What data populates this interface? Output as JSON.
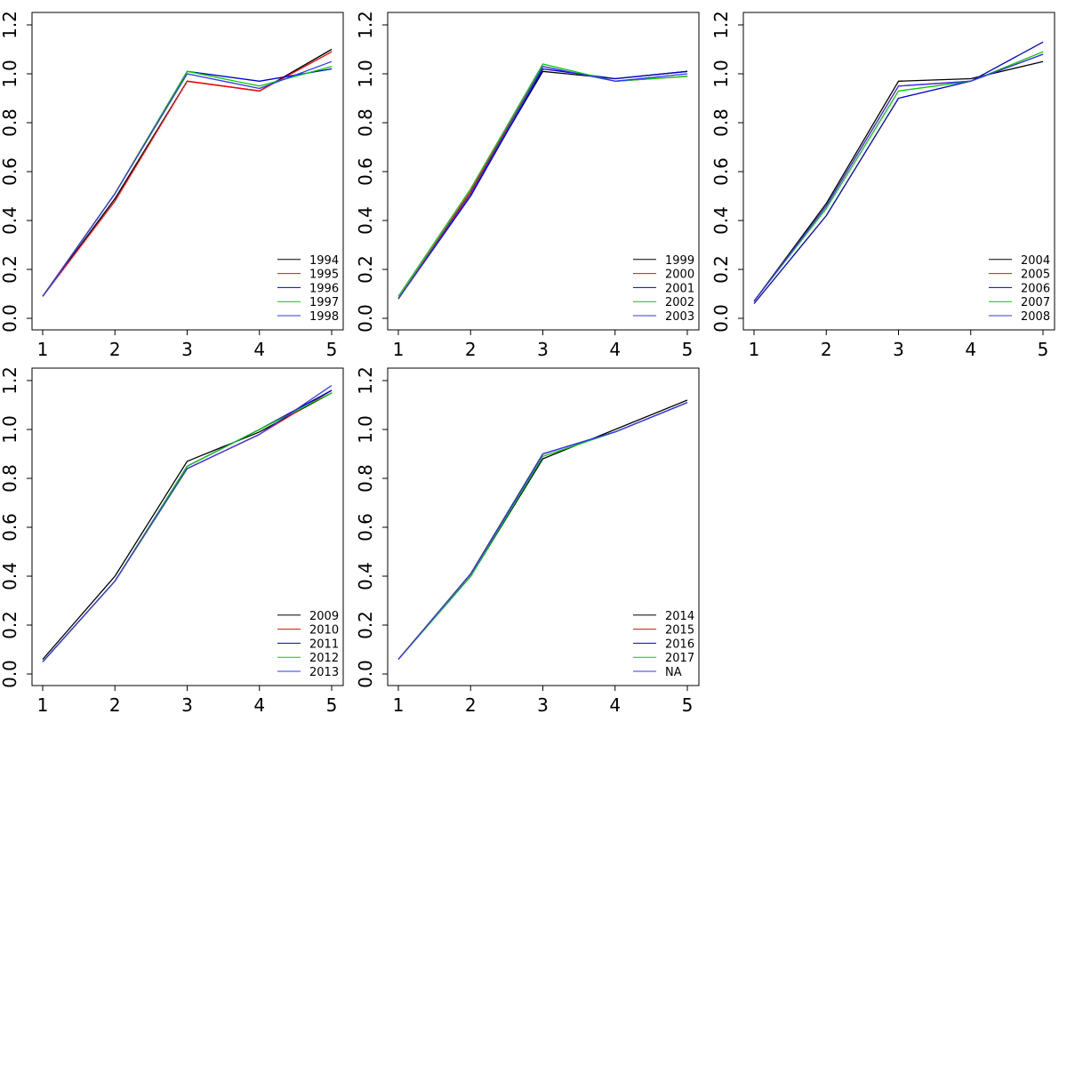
{
  "palette": [
    "#000000",
    "#ff0000",
    "#0000cd",
    "#00cd00",
    "#3333ff"
  ],
  "chart_data": [
    {
      "type": "line",
      "x": [
        1,
        2,
        3,
        4,
        5
      ],
      "xlim": [
        1,
        5
      ],
      "ylim": [
        0,
        1.2
      ],
      "x_ticks": [
        "1",
        "2",
        "3",
        "4",
        "5"
      ],
      "y_ticks": [
        "0.0",
        "0.2",
        "0.4",
        "0.6",
        "0.8",
        "1.0",
        "1.2"
      ],
      "legend_position": "bottom-right",
      "series": [
        {
          "name": "1994",
          "color": "#000000",
          "values": [
            0.09,
            0.49,
            0.97,
            0.93,
            1.1
          ]
        },
        {
          "name": "1995",
          "color": "#ff0000",
          "values": [
            0.09,
            0.48,
            0.97,
            0.93,
            1.09
          ]
        },
        {
          "name": "1996",
          "color": "#0000cd",
          "values": [
            0.09,
            0.51,
            1.01,
            0.97,
            1.02
          ]
        },
        {
          "name": "1997",
          "color": "#00cd00",
          "values": [
            0.09,
            0.51,
            1.01,
            0.95,
            1.03
          ]
        },
        {
          "name": "1998",
          "color": "#3333ff",
          "values": [
            0.09,
            0.51,
            1.0,
            0.94,
            1.05
          ]
        }
      ]
    },
    {
      "type": "line",
      "x": [
        1,
        2,
        3,
        4,
        5
      ],
      "xlim": [
        1,
        5
      ],
      "ylim": [
        0,
        1.2
      ],
      "x_ticks": [
        "1",
        "2",
        "3",
        "4",
        "5"
      ],
      "y_ticks": [
        "0.0",
        "0.2",
        "0.4",
        "0.6",
        "0.8",
        "1.0",
        "1.2"
      ],
      "legend_position": "bottom-right",
      "series": [
        {
          "name": "1999",
          "color": "#000000",
          "values": [
            0.08,
            0.51,
            1.01,
            0.98,
            1.01
          ]
        },
        {
          "name": "2000",
          "color": "#ff0000",
          "values": [
            0.08,
            0.52,
            1.03,
            0.97,
            0.99
          ]
        },
        {
          "name": "2001",
          "color": "#0000cd",
          "values": [
            0.08,
            0.5,
            1.02,
            0.98,
            1.01
          ]
        },
        {
          "name": "2002",
          "color": "#00cd00",
          "values": [
            0.09,
            0.53,
            1.04,
            0.97,
            0.99
          ]
        },
        {
          "name": "2003",
          "color": "#3333ff",
          "values": [
            0.08,
            0.51,
            1.03,
            0.97,
            1.0
          ]
        }
      ]
    },
    {
      "type": "line",
      "x": [
        1,
        2,
        3,
        4,
        5
      ],
      "xlim": [
        1,
        5
      ],
      "ylim": [
        0,
        1.2
      ],
      "x_ticks": [
        "1",
        "2",
        "3",
        "4",
        "5"
      ],
      "y_ticks": [
        "0.0",
        "0.2",
        "0.4",
        "0.6",
        "0.8",
        "1.0",
        "1.2"
      ],
      "legend_position": "bottom-right",
      "series": [
        {
          "name": "2004",
          "color": "#000000",
          "values": [
            0.07,
            0.47,
            0.97,
            0.98,
            1.05
          ]
        },
        {
          "name": "2005",
          "color": "#ff0000",
          "values": [
            0.07,
            0.46,
            0.95,
            0.97,
            1.08
          ]
        },
        {
          "name": "2006",
          "color": "#0000cd",
          "values": [
            0.06,
            0.42,
            0.9,
            0.97,
            1.13
          ]
        },
        {
          "name": "2007",
          "color": "#00cd00",
          "values": [
            0.07,
            0.45,
            0.93,
            0.97,
            1.09
          ]
        },
        {
          "name": "2008",
          "color": "#3333ff",
          "values": [
            0.07,
            0.46,
            0.95,
            0.97,
            1.08
          ]
        }
      ]
    },
    {
      "type": "line",
      "x": [
        1,
        2,
        3,
        4,
        5
      ],
      "xlim": [
        1,
        5
      ],
      "ylim": [
        0,
        1.2
      ],
      "x_ticks": [
        "1",
        "2",
        "3",
        "4",
        "5"
      ],
      "y_ticks": [
        "0.0",
        "0.2",
        "0.4",
        "0.6",
        "0.8",
        "1.0",
        "1.2"
      ],
      "legend_position": "bottom-right",
      "series": [
        {
          "name": "2009",
          "color": "#000000",
          "values": [
            0.06,
            0.4,
            0.87,
            0.99,
            1.15
          ]
        },
        {
          "name": "2010",
          "color": "#ff0000",
          "values": [
            0.05,
            0.38,
            0.84,
            0.98,
            1.16
          ]
        },
        {
          "name": "2011",
          "color": "#0000cd",
          "values": [
            0.05,
            0.38,
            0.85,
            1.0,
            1.16
          ]
        },
        {
          "name": "2012",
          "color": "#00cd00",
          "values": [
            0.05,
            0.38,
            0.85,
            1.0,
            1.15
          ]
        },
        {
          "name": "2013",
          "color": "#3333ff",
          "values": [
            0.05,
            0.38,
            0.84,
            0.98,
            1.18
          ]
        }
      ]
    },
    {
      "type": "line",
      "x": [
        1,
        2,
        3,
        4,
        5
      ],
      "xlim": [
        1,
        5
      ],
      "ylim": [
        0,
        1.2
      ],
      "x_ticks": [
        "1",
        "2",
        "3",
        "4",
        "5"
      ],
      "y_ticks": [
        "0.0",
        "0.2",
        "0.4",
        "0.6",
        "0.8",
        "1.0",
        "1.2"
      ],
      "legend_position": "bottom-right",
      "series": [
        {
          "name": "2014",
          "color": "#000000",
          "values": [
            0.06,
            0.4,
            0.88,
            1.0,
            1.12
          ]
        },
        {
          "name": "2015",
          "color": "#ff0000",
          "values": [
            0.06,
            0.41,
            0.9,
            0.99,
            1.11
          ]
        },
        {
          "name": "2016",
          "color": "#0000cd",
          "values": [
            0.06,
            0.4,
            0.9,
            0.99,
            1.11
          ]
        },
        {
          "name": "2017",
          "color": "#00cd00",
          "values": [
            0.06,
            0.4,
            0.89,
            0.99,
            1.11
          ]
        },
        {
          "name": "NA",
          "color": "#3333ff",
          "values": [
            0.06,
            0.41,
            0.9,
            0.99,
            1.11
          ]
        }
      ]
    }
  ]
}
